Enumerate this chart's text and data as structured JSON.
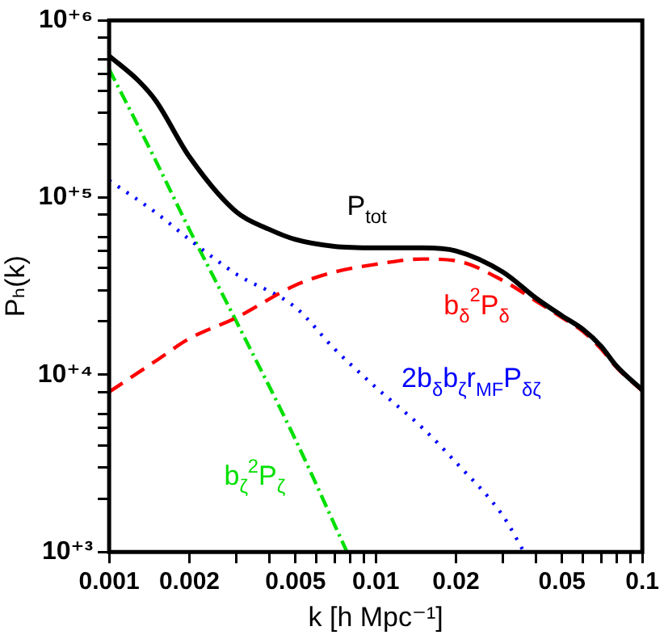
{
  "chart_data": {
    "type": "line",
    "xlabel": "k [h Mpc⁻¹]",
    "ylabel": "Pₕ(k)",
    "log": "xy",
    "grid": false,
    "legend": false,
    "marker": "none",
    "xlim": [
      0.001,
      0.1
    ],
    "ylim": [
      1000,
      1000000
    ],
    "xticks": [
      0.001,
      0.002,
      {
        "value": 0.003,
        "label": null
      },
      {
        "value": 0.004,
        "label": null
      },
      0.005,
      {
        "value": 0.006,
        "label": null
      },
      {
        "value": 0.007,
        "label": null
      },
      {
        "value": 0.008,
        "label": null
      },
      {
        "value": 0.009,
        "label": null
      },
      0.01,
      0.02,
      {
        "value": 0.03,
        "label": null
      },
      {
        "value": 0.04,
        "label": null
      },
      0.05,
      {
        "value": 0.06,
        "label": null
      },
      {
        "value": 0.07,
        "label": null
      },
      {
        "value": 0.08,
        "label": null
      },
      {
        "value": 0.09,
        "label": null
      },
      0.1
    ],
    "yticks": [
      {
        "value": 1000,
        "label": "10⁺³"
      },
      {
        "value": 2000,
        "label": null
      },
      {
        "value": 3000,
        "label": null
      },
      {
        "value": 4000,
        "label": null
      },
      {
        "value": 5000,
        "label": null
      },
      {
        "value": 6000,
        "label": null
      },
      {
        "value": 8000,
        "label": null
      },
      {
        "value": 10000,
        "label": "10⁺⁴"
      },
      {
        "value": 20000,
        "label": null
      },
      {
        "value": 30000,
        "label": null
      },
      {
        "value": 40000,
        "label": null
      },
      {
        "value": 50000,
        "label": null
      },
      {
        "value": 60000,
        "label": null
      },
      {
        "value": 80000,
        "label": null
      },
      {
        "value": 100000,
        "label": "10⁺⁵"
      },
      {
        "value": 200000,
        "label": null
      },
      {
        "value": 300000,
        "label": null
      },
      {
        "value": 400000,
        "label": null
      },
      {
        "value": 500000,
        "label": null
      },
      {
        "value": 600000,
        "label": null
      },
      {
        "value": 800000,
        "label": null
      },
      {
        "value": 1000000,
        "label": "10⁺⁶"
      }
    ],
    "series": [
      {
        "name": "P$_{tot}$",
        "color": "#000000",
        "line_style": "solid",
        "x": [
          0.001,
          0.0013,
          0.0015,
          0.002,
          0.003,
          0.004,
          0.005,
          0.007,
          0.01,
          0.015,
          0.02,
          0.03,
          0.04,
          0.05,
          0.06,
          0.07,
          0.08,
          0.1
        ],
        "values": [
          630000,
          450000,
          350000,
          170000,
          83000,
          66000,
          58000,
          53000,
          52000,
          52000,
          50000,
          38000,
          27000,
          21500,
          18000,
          14500,
          11200,
          8200
        ]
      },
      {
        "name": "b$_{δ}$$^{2}$P$_{δ}$",
        "color": "#ff0000",
        "line_style": "dashed",
        "x": [
          0.001,
          0.0015,
          0.002,
          0.003,
          0.005,
          0.007,
          0.01,
          0.015,
          0.02,
          0.03,
          0.04,
          0.05,
          0.06,
          0.07,
          0.08,
          0.1
        ],
        "values": [
          8000,
          12000,
          16000,
          21000,
          32000,
          38000,
          42000,
          45000,
          44000,
          34000,
          26000,
          21000,
          17500,
          14000,
          11000,
          8100
        ]
      },
      {
        "name": "2b$_{δ}$b$_{ζ}$r$_{MF}$P$_{δζ}$",
        "color": "#0000ff",
        "line_style": "dotted",
        "x": [
          0.001,
          0.0015,
          0.002,
          0.003,
          0.005,
          0.007,
          0.01,
          0.015,
          0.02,
          0.03,
          0.036
        ],
        "values": [
          125000,
          82000,
          58000,
          37000,
          24000,
          14000,
          8500,
          5000,
          3200,
          1600,
          1000
        ]
      },
      {
        "name": "b$_{ζ}$$^{2}$P$_{ζ}$",
        "color": "#00e000",
        "line_style": "dashdot",
        "x": [
          0.001,
          0.0015,
          0.002,
          0.003,
          0.005,
          0.0078
        ],
        "values": [
          530000,
          160000,
          66000,
          20000,
          4300,
          1000
        ]
      }
    ]
  }
}
